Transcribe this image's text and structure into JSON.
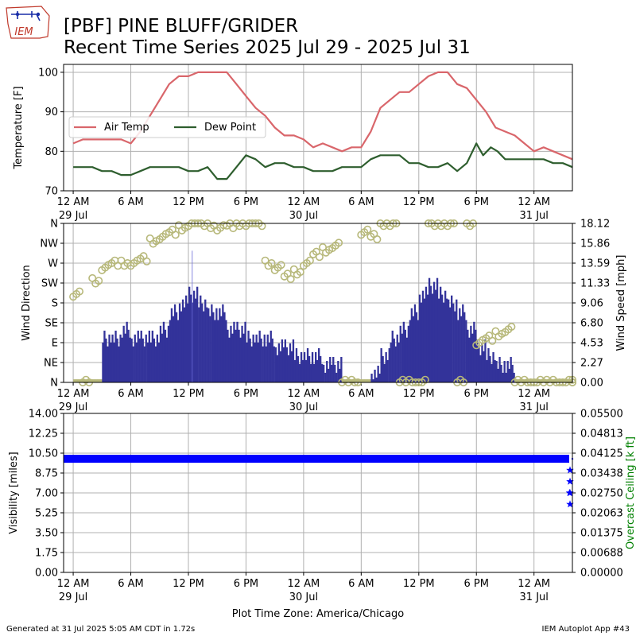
{
  "header": {
    "title_line1": "[PBF] PINE BLUFF/GRIDER",
    "title_line2": "Recent Time Series 2025 Jul 29 - 2025 Jul 31",
    "logo_text": "IEM"
  },
  "footer": {
    "generated": "Generated at 31 Jul 2025 5:05 AM CDT in 1.72s",
    "app": "IEM Autoplot App #43"
  },
  "xaxis": {
    "ticks": [
      "12 AM",
      "6 AM",
      "12 PM",
      "6 PM",
      "12 AM",
      "6 AM",
      "12 PM",
      "6 PM",
      "12 AM"
    ],
    "tick_hours": [
      0,
      6,
      12,
      18,
      24,
      30,
      36,
      42,
      48
    ],
    "date_labels": [
      {
        "hour": 0,
        "text": "29 Jul"
      },
      {
        "hour": 24,
        "text": "30 Jul"
      },
      {
        "hour": 48,
        "text": "31 Jul"
      }
    ],
    "label": "Plot Time Zone: America/Chicago"
  },
  "colors": {
    "air_temp": "#d9666b",
    "dew_point": "#2e5e2e",
    "wind_speed": "#33339a",
    "wind_dir": "#b7b87a",
    "visibility": "#0000ff",
    "ceiling_label": "#008000",
    "grid": "#b0b0b0"
  },
  "chart_data": [
    {
      "type": "line",
      "title": "Temperature",
      "ylabel": "Temperature [F]",
      "ylim": [
        70,
        102
      ],
      "yticks": [
        70,
        80,
        90,
        100
      ],
      "xlim_hours": [
        -1.0,
        52.0
      ],
      "x_units": "hours since 29 Jul 2025 12 AM CDT",
      "legend": "center-left",
      "grid": true,
      "series": [
        {
          "name": "Air Temp",
          "x": [
            0,
            1,
            2,
            3,
            4,
            5,
            6,
            7,
            8,
            9,
            10,
            11,
            12,
            13,
            14,
            15,
            16,
            17,
            18,
            19,
            20,
            21,
            22,
            23,
            24,
            25,
            26,
            27,
            28,
            29,
            30,
            31,
            32,
            33,
            34,
            35,
            36,
            37,
            38,
            39,
            40,
            41,
            42,
            43,
            44,
            45,
            46,
            47,
            48,
            49,
            50,
            51,
            52
          ],
          "values": [
            82,
            83,
            83,
            83,
            83,
            83,
            82,
            85,
            89,
            93,
            97,
            99,
            99,
            100,
            100,
            100,
            100,
            97,
            94,
            91,
            89,
            86,
            84,
            84,
            83,
            81,
            82,
            81,
            80,
            81,
            81,
            85,
            91,
            93,
            95,
            95,
            97,
            99,
            100,
            100,
            97,
            96,
            93,
            90,
            86,
            85,
            84,
            82,
            80,
            81,
            80,
            79,
            78
          ]
        },
        {
          "name": "Dew Point",
          "x": [
            0,
            1,
            2,
            3,
            4,
            5,
            6,
            7,
            8,
            9,
            10,
            11,
            12,
            13,
            14,
            15,
            16,
            17,
            18,
            19,
            20,
            21,
            22,
            23,
            24,
            25,
            26,
            27,
            28,
            29,
            30,
            31,
            32,
            33,
            34,
            35,
            36,
            37,
            38,
            39,
            40,
            41,
            42,
            42.7,
            43.5,
            44.2,
            45,
            46,
            47,
            48,
            49,
            50,
            51,
            52
          ],
          "values": [
            76,
            76,
            76,
            75,
            75,
            74,
            74,
            75,
            76,
            76,
            76,
            76,
            75,
            75,
            76,
            73,
            73,
            76,
            79,
            78,
            76,
            77,
            77,
            76,
            76,
            75,
            75,
            75,
            76,
            76,
            76,
            78,
            79,
            79,
            79,
            77,
            77,
            76,
            76,
            77,
            75,
            77,
            82,
            79,
            81,
            80,
            78,
            78,
            78,
            78,
            78,
            77,
            77,
            76
          ]
        }
      ]
    },
    {
      "type": "bar",
      "title": "Wind",
      "ylabel": "Wind Direction",
      "y2label": "Wind Speed [mph]",
      "dir_ticks": [
        "N",
        "NE",
        "E",
        "SE",
        "S",
        "SW",
        "W",
        "NW",
        "N"
      ],
      "dir_degrees": [
        0,
        45,
        90,
        135,
        180,
        225,
        270,
        315,
        360
      ],
      "speed_ticks": [
        "0.00",
        "2.27",
        "4.53",
        "6.80",
        "9.06",
        "11.33",
        "13.59",
        "15.86",
        "18.12"
      ],
      "speed_lim": [
        0,
        18.12
      ],
      "grid": true,
      "series": [
        {
          "name": "Wind Speed",
          "x_hours": [
            0,
            1,
            2,
            3,
            4,
            5,
            6,
            7,
            8,
            9,
            10,
            11,
            12,
            13,
            14,
            15,
            16,
            17,
            18,
            19,
            20,
            21,
            22,
            23,
            24,
            25,
            26,
            27,
            28,
            29,
            30,
            31,
            32,
            33,
            34,
            35,
            36,
            37,
            38,
            39,
            40,
            41,
            42,
            43,
            44,
            45,
            46,
            47,
            48,
            49,
            50,
            51,
            52
          ],
          "values": [
            0,
            0,
            0,
            5,
            5,
            6,
            5,
            5,
            5,
            6,
            8,
            9,
            10,
            9,
            8,
            8,
            6,
            6,
            5,
            5,
            5,
            4,
            4,
            3,
            3,
            3,
            2,
            2,
            0,
            0,
            0,
            1,
            3,
            5,
            6,
            8,
            10,
            11,
            10,
            9,
            8,
            6,
            4,
            3,
            2,
            2,
            0,
            0,
            0,
            0,
            0,
            0,
            0
          ],
          "peak": {
            "x_hours": 12.4,
            "value": 15.0
          }
        },
        {
          "name": "Wind Direction",
          "x_hours": [
            0,
            1,
            2,
            3,
            4,
            5,
            6,
            7,
            8,
            9,
            10,
            11,
            12,
            13,
            14,
            15,
            16,
            17,
            18,
            19,
            20,
            21,
            22,
            23,
            24,
            25,
            26,
            27,
            28,
            29,
            30,
            31,
            32,
            33,
            34,
            35,
            36,
            37,
            38,
            39,
            40,
            41,
            42,
            43,
            44,
            45,
            46,
            47,
            48,
            49,
            50,
            51,
            52
          ],
          "degrees": [
            200,
            0,
            230,
            260,
            270,
            270,
            270,
            280,
            320,
            330,
            340,
            350,
            360,
            360,
            355,
            350,
            355,
            360,
            360,
            360,
            270,
            260,
            240,
            250,
            270,
            290,
            300,
            310,
            0,
            0,
            340,
            330,
            360,
            360,
            0,
            0,
            0,
            360,
            360,
            360,
            0,
            360,
            90,
            100,
            110,
            120,
            0,
            0,
            0,
            0,
            0,
            0,
            0
          ]
        }
      ]
    },
    {
      "type": "scatter",
      "title": "Visibility",
      "ylabel": "Visibility [miles]",
      "y2label": "Overcast Ceiling [k ft]",
      "yticks": [
        "0.00",
        "1.75",
        "3.50",
        "5.25",
        "7.00",
        "8.75",
        "10.50",
        "12.25",
        "14.00"
      ],
      "ylim": [
        0,
        14
      ],
      "y2ticks": [
        "0.00000",
        "0.00688",
        "0.01375",
        "0.02063",
        "0.02750",
        "0.03438",
        "0.04125",
        "0.04813",
        "0.05500"
      ],
      "y2lim": [
        0,
        0.055
      ],
      "grid": true,
      "series": [
        {
          "name": "Visibility",
          "x_hours": [
            0,
            2,
            4,
            6,
            8,
            10,
            12,
            14,
            16,
            18,
            20,
            22,
            24,
            26,
            28,
            30,
            32,
            34,
            36,
            38,
            40,
            42,
            44,
            46,
            48,
            50,
            52
          ],
          "values": [
            10,
            10,
            10,
            10,
            10,
            10,
            10,
            10,
            10,
            10,
            10,
            10,
            10,
            10,
            10,
            10,
            10,
            10,
            10,
            10,
            10,
            10,
            10,
            10,
            10,
            10,
            10
          ]
        },
        {
          "name": "Ceiling",
          "x_hours": [
            52.0,
            52.05,
            51.95,
            52.0,
            52.02
          ],
          "values": [
            9.0,
            8.0,
            7.0,
            6.0,
            7.0
          ]
        }
      ]
    }
  ]
}
